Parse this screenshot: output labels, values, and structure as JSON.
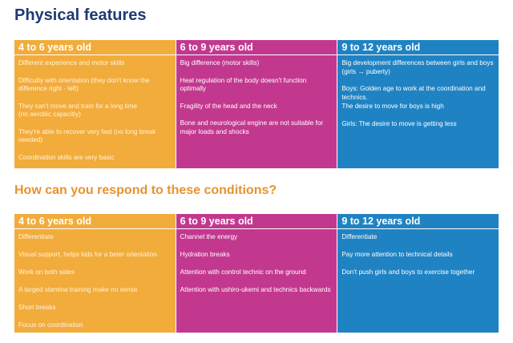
{
  "colors": {
    "title": "#1f3a73",
    "subtitle": "#e8922e",
    "col1": "#f2ac3c",
    "col2": "#c3388f",
    "col3": "#1f83c3"
  },
  "section1": {
    "title": "Physical features",
    "columns": [
      {
        "header": "4 to 6 years old",
        "items": [
          "Different experience and motor skills",
          "Difficulty with orientation (they don't know the difference right - left)",
          "They can't move and train for a long time\n (no aerobic capacitiy)",
          "They're able to recover very fast (no long break needed)",
          "Coordination skills are very basic"
        ]
      },
      {
        "header": "6 to 9 years old",
        "items": [
          "Big difference (motor skills)",
          "Heat regulation of the body doesn't function optimally",
          "Fragility of the head and the neck",
          "Bone and neurological engine are not suitable for major loads and shocks"
        ]
      },
      {
        "header": "9 to 12 years old",
        "items": [
          "Big development differences between girls and boys (girls → puberty)",
          "Boys: Golden age to work at the coordination and technics.",
          "The desire to move for boys is high",
          "Girls: The desire to move is getting less"
        ]
      }
    ]
  },
  "section2": {
    "title": "How can you respond to these conditions?",
    "columns": [
      {
        "header": "4 to 6 years old",
        "items": [
          "Differentiate",
          "Visual support, helps kids for a beter orientation",
          "Work on both sides",
          "A targed stamina training make no sense",
          "Short breaks",
          "Focus on coordination"
        ]
      },
      {
        "header": "6 to 9 years old",
        "items": [
          "Channel the energy",
          "Hydration breaks",
          "Attention with control technic on the ground",
          "Attention with ushiro-ukemi and technics backwards"
        ]
      },
      {
        "header": "9 to 12 years old",
        "items": [
          "Differentiate",
          "Pay more attention to technical details",
          "Don't push girls and boys to exercise together"
        ]
      }
    ]
  }
}
